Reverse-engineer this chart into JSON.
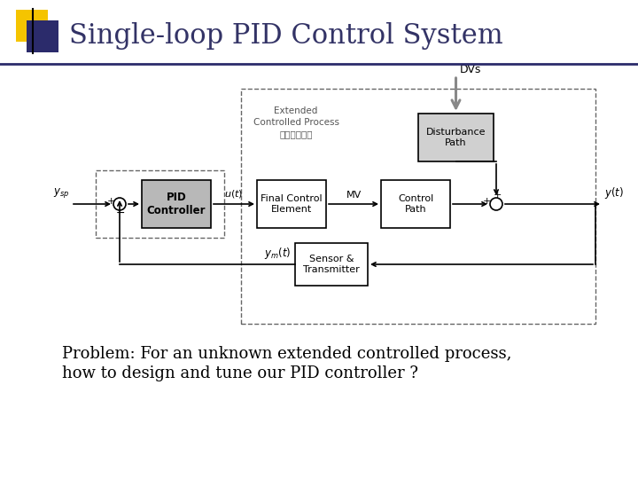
{
  "title": "Single-loop PID Control System",
  "title_fontsize": 22,
  "title_color": "#333366",
  "problem_text_line1": "Problem: For an unknown extended controlled process,",
  "problem_text_line2": "how to design and tune our PID controller ?",
  "problem_fontsize": 13,
  "bg_color": "#ffffff",
  "logo_yellow": "#F5C400",
  "logo_blue": "#2B2B6B",
  "line_color": "#2B2B6B"
}
